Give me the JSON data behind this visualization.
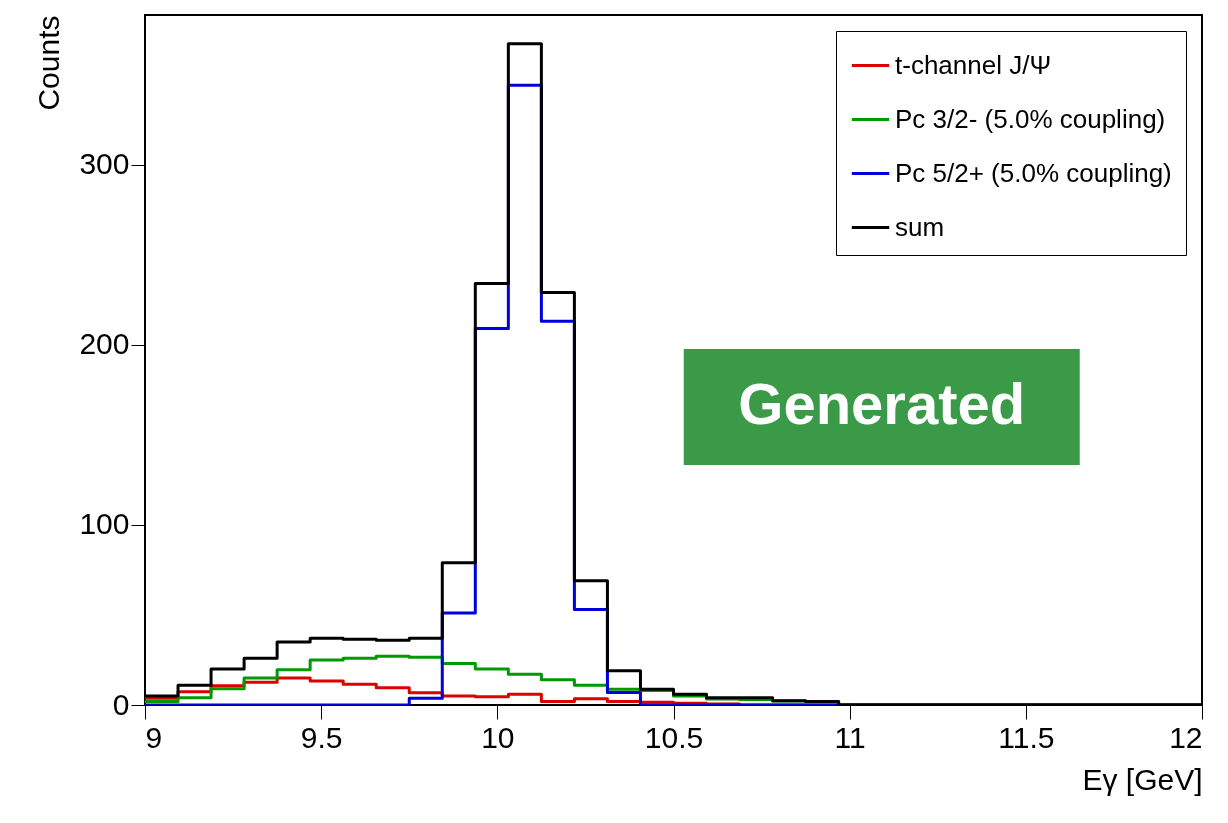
{
  "chart_data": {
    "type": "histogram",
    "xlabel": "Eγ [GeV]",
    "ylabel": "Counts",
    "bins": [
      9,
      9.09375,
      9.1875,
      9.28125,
      9.375,
      9.46875,
      9.5625,
      9.65625,
      9.75,
      9.84375,
      9.9375,
      10.03125,
      10.125,
      10.21875,
      10.3125,
      10.40625,
      10.5,
      10.59375,
      10.6875,
      10.78125,
      10.875,
      10.96875,
      11.0625,
      11.15625,
      11.25,
      11.34375,
      11.4375,
      11.53125,
      11.625,
      11.71875,
      11.8125,
      11.90625,
      12
    ],
    "series": [
      {
        "name": "t-channel J/Ψ",
        "color": "#dd0000",
        "values": [
          3.7,
          7.4,
          10.7,
          12.6,
          15,
          13.3,
          11.5,
          9.6,
          6.8,
          5,
          4.6,
          6,
          2,
          3.5,
          2,
          1.5,
          1,
          0.5,
          0,
          0,
          0,
          0,
          0,
          0,
          0,
          0,
          0,
          0,
          0,
          0,
          0,
          0
        ]
      },
      {
        "name": "Pc 3/2- (5.0% coupling)",
        "color": "#009900",
        "values": [
          2,
          4,
          9,
          15,
          19.5,
          25,
          26,
          27,
          26.5,
          23,
          20,
          17,
          14,
          11,
          8.7,
          8,
          5,
          3.3,
          3,
          2.2,
          2,
          0,
          0,
          0,
          0,
          0,
          0,
          0,
          0,
          0,
          0,
          0
        ]
      },
      {
        "name": "Pc 5/2+ (5.0% coupling)",
        "color": "#0000dd",
        "values": [
          0,
          0,
          0,
          0,
          0,
          0,
          0,
          0,
          3.7,
          51,
          209,
          344,
          213,
          53,
          7,
          0,
          0,
          0,
          0,
          0,
          0,
          0,
          0,
          0,
          0,
          0,
          0,
          0,
          0,
          0,
          0,
          0
        ]
      },
      {
        "name": "sum",
        "color": "#000000",
        "values": [
          5,
          11,
          20,
          26,
          35,
          37,
          36.5,
          36,
          37,
          79,
          234,
          367,
          229,
          69,
          19,
          8.7,
          6,
          4,
          4,
          2.4,
          2,
          0,
          0,
          0,
          0,
          0,
          0,
          0,
          0,
          0,
          0,
          0
        ]
      }
    ],
    "xlim": [
      9,
      12
    ],
    "xticks": [
      9,
      9.5,
      10,
      10.5,
      11,
      11.5,
      12
    ],
    "ylim": [
      0,
      383
    ],
    "yticks": [
      0,
      100,
      200,
      300
    ],
    "grid": false,
    "legend": "top right",
    "annotations": [
      "Generated"
    ]
  }
}
